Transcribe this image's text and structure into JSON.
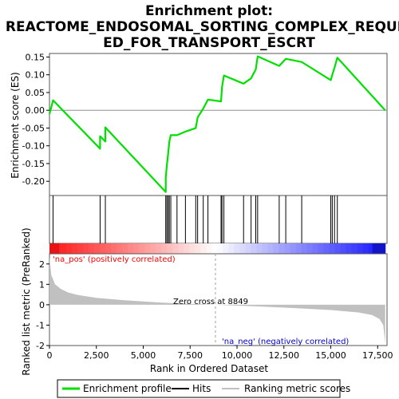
{
  "title_line1": "Enrichment plot:",
  "title_line2": "REACTOME_ENDOSOMAL_SORTING_COMPLEX_REQUIR",
  "title_line3": "ED_FOR_TRANSPORT_ESCRT",
  "top_ylabel": "Enrichment score (ES)",
  "bottom_ylabel": "Ranked list metric (PreRanked)",
  "xlabel": "Rank in Ordered Dataset",
  "zero_cross_label": "Zero cross at 8849",
  "pos_label": "'na_pos' (positively correlated)",
  "neg_label": "'na_neg' (negatively correlated)",
  "legend": {
    "enrichment": "Enrichment profile",
    "hits": "Hits",
    "ranking": "Ranking metric scores"
  },
  "colors": {
    "es_line": "#00e000",
    "hits": "#000000",
    "ranking": "#c0c0c0",
    "pos_text": "#ff0000",
    "neg_text": "#0000cc",
    "zero_line": "#a0a0a0"
  },
  "chart_data": {
    "type": "line",
    "x_range": [
      0,
      18000
    ],
    "x_ticks": [
      "0",
      "2,500",
      "5,000",
      "7,500",
      "10,000",
      "12,500",
      "15,000",
      "17,500"
    ],
    "x_tick_values": [
      0,
      2500,
      5000,
      7500,
      10000,
      12500,
      15000,
      17500
    ],
    "es_ylim": [
      -0.24,
      0.16
    ],
    "es_yticks": [
      "-0.20",
      "-0.15",
      "-0.10",
      "-0.05",
      "0.00",
      "0.05",
      "0.10",
      "0.15"
    ],
    "es_ytick_values": [
      -0.2,
      -0.15,
      -0.1,
      -0.05,
      0.0,
      0.05,
      0.1,
      0.15
    ],
    "metric_ylim": [
      -2,
      2.5
    ],
    "metric_yticks": [
      "-2",
      "-1",
      "0",
      "1",
      "2"
    ],
    "metric_ytick_values": [
      -2,
      -1,
      0,
      1,
      2
    ],
    "zero_cross": 8849,
    "dataset_size": 17900,
    "hits": [
      190,
      2700,
      2980,
      6200,
      6260,
      6330,
      6390,
      6470,
      6800,
      7250,
      7800,
      7900,
      8200,
      8450,
      9150,
      9200,
      9300,
      10350,
      10750,
      11000,
      11100,
      12250,
      12600,
      13450,
      15000,
      15080,
      15200,
      15350
    ],
    "enrichment_profile": {
      "x": [
        0,
        190,
        2700,
        2700,
        2980,
        2980,
        6200,
        6200,
        6260,
        6330,
        6390,
        6470,
        6800,
        7250,
        7800,
        7900,
        8200,
        8450,
        9150,
        9200,
        9300,
        10350,
        10750,
        11000,
        11100,
        12250,
        12600,
        13450,
        15000,
        15080,
        15200,
        15350,
        17900
      ],
      "y": [
        -0.01,
        0.028,
        -0.108,
        -0.073,
        -0.088,
        -0.048,
        -0.23,
        -0.19,
        -0.155,
        -0.12,
        -0.088,
        -0.07,
        -0.07,
        -0.06,
        -0.05,
        -0.02,
        0.005,
        0.03,
        0.025,
        0.065,
        0.098,
        0.075,
        0.09,
        0.115,
        0.152,
        0.125,
        0.145,
        0.136,
        0.085,
        0.1,
        0.12,
        0.148,
        0.0
      ]
    },
    "ranking_metric": {
      "x": [
        0,
        100,
        300,
        600,
        1000,
        1500,
        2500,
        4000,
        6000,
        8849,
        11000,
        13000,
        15000,
        16500,
        17200,
        17600,
        17800,
        17900
      ],
      "y": [
        2.35,
        1.45,
        1.0,
        0.78,
        0.6,
        0.48,
        0.34,
        0.22,
        0.1,
        0.0,
        -0.08,
        -0.16,
        -0.26,
        -0.38,
        -0.5,
        -0.7,
        -1.0,
        -1.9
      ]
    }
  }
}
